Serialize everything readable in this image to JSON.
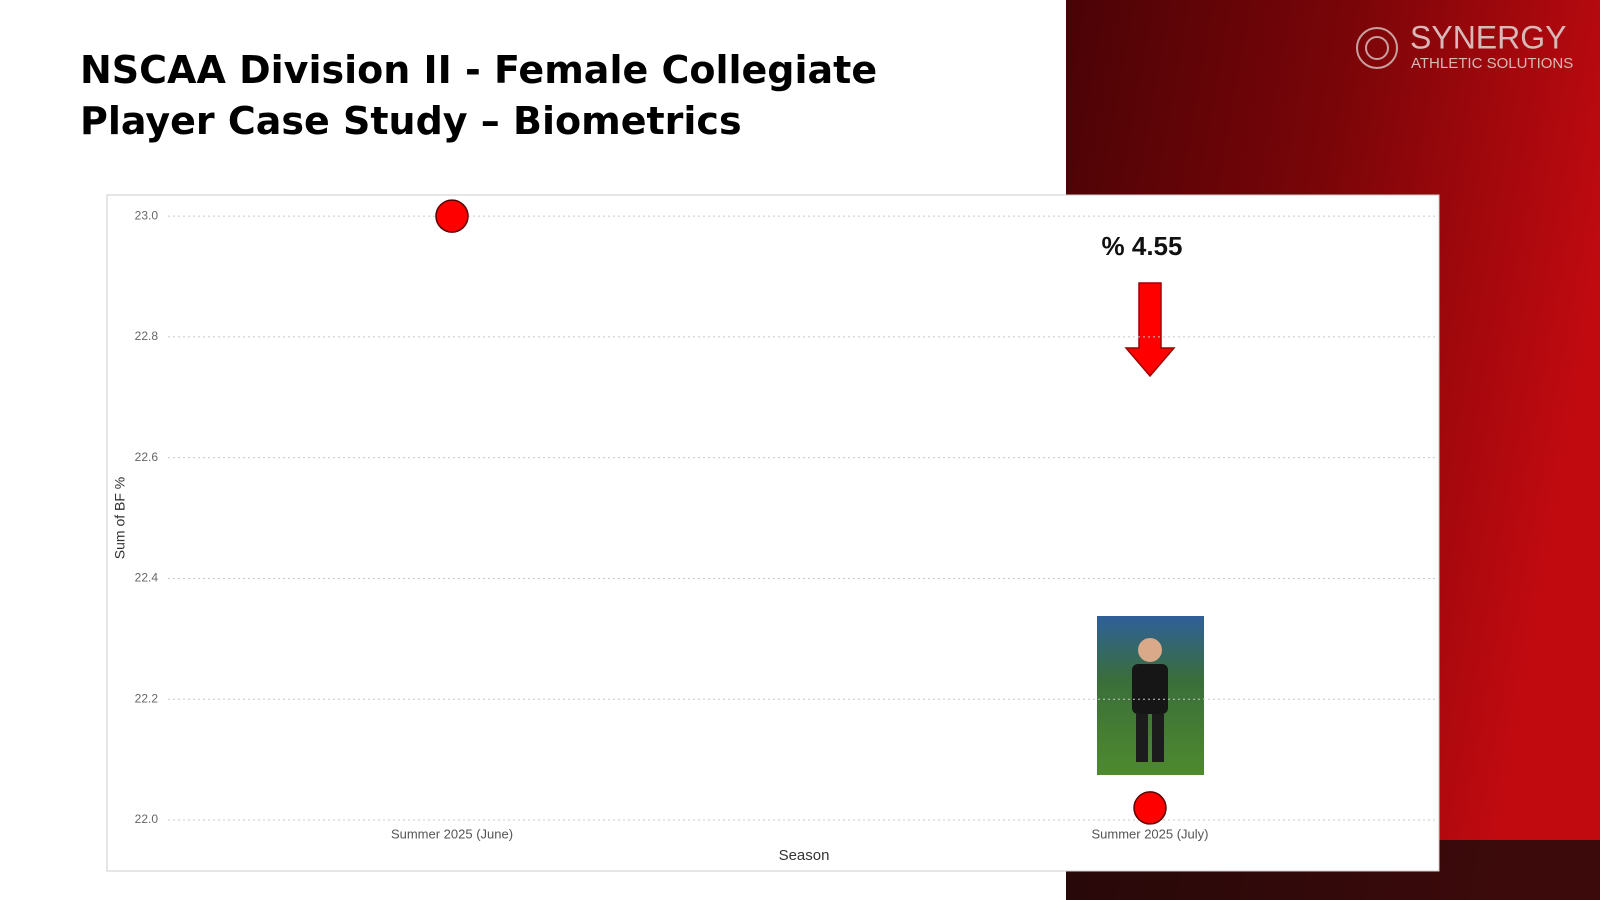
{
  "chart_data": {
    "type": "scatter",
    "title": "NSCAA Division II - Female Collegiate Player Case Study – Biometrics",
    "logo": {
      "name": "SYNERGY",
      "tagline": "ATHLETIC SOLUTIONS"
    },
    "annotation": "% 4.55",
    "x_label": "Season",
    "y_label": "Sum of BF %",
    "categories": [
      "Summer 2025 (June)",
      "Summer 2025 (July)"
    ],
    "values": [
      23.0,
      22.02
    ],
    "color": "#ff0000",
    "ylim": [
      22.0,
      23.03
    ],
    "yticks": [
      {
        "value": 22,
        "label": "22.0"
      },
      22.2,
      22.4,
      22.6,
      22.8,
      {
        "value": 23,
        "label": "23.0"
      }
    ],
    "grid": true
  }
}
